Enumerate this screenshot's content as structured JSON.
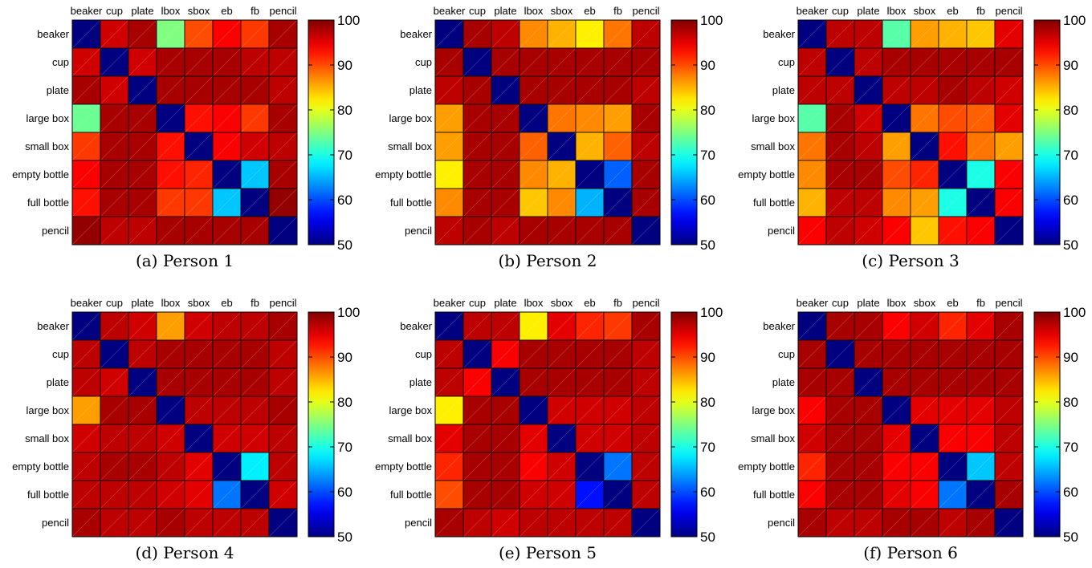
{
  "chart_data": [
    {
      "type": "heatmap",
      "caption": "(a)  Person 1",
      "x_labels": [
        "beaker",
        "cup",
        "plate",
        "lbox",
        "sbox",
        "eb",
        "fb",
        "pencil"
      ],
      "y_labels": [
        "beaker",
        "cup",
        "plate",
        "large box",
        "small box",
        "empty bottle",
        "full bottle",
        "pencil"
      ],
      "values": [
        [
          50,
          96,
          98,
          75,
          90,
          94,
          91,
          98
        ],
        [
          96,
          50,
          96,
          98,
          98,
          98,
          97,
          97
        ],
        [
          98,
          96,
          50,
          98,
          98,
          98,
          98,
          97
        ],
        [
          74,
          98,
          98,
          50,
          93,
          94,
          91,
          98
        ],
        [
          91,
          98,
          98,
          93,
          50,
          94,
          96,
          97
        ],
        [
          94,
          98,
          98,
          93,
          92,
          50,
          66,
          98
        ],
        [
          93,
          98,
          98,
          91,
          91,
          66,
          50,
          99
        ],
        [
          99,
          97,
          97,
          98,
          98,
          98,
          98,
          50
        ]
      ],
      "colorbar": {
        "min": 50,
        "max": 100,
        "ticks": [
          50,
          60,
          70,
          80,
          90,
          100
        ],
        "colormap": "jet"
      }
    },
    {
      "type": "heatmap",
      "caption": "(b)  Person 2",
      "x_labels": [
        "beaker",
        "cup",
        "plate",
        "lbox",
        "sbox",
        "eb",
        "fb",
        "pencil"
      ],
      "y_labels": [
        "beaker",
        "cup",
        "plate",
        "large box",
        "small box",
        "empty bottle",
        "full bottle",
        "pencil"
      ],
      "values": [
        [
          50,
          98,
          97,
          87,
          85,
          82,
          88,
          97
        ],
        [
          98,
          50,
          98,
          98,
          98,
          98,
          98,
          98
        ],
        [
          97,
          98,
          50,
          98,
          98,
          98,
          98,
          97
        ],
        [
          86,
          98,
          98,
          50,
          88,
          87,
          86,
          98
        ],
        [
          86,
          98,
          98,
          89,
          50,
          85,
          89,
          97
        ],
        [
          82,
          98,
          98,
          87,
          85,
          50,
          61,
          98
        ],
        [
          87,
          98,
          98,
          84,
          87,
          65,
          50,
          98
        ],
        [
          97,
          98,
          97,
          98,
          98,
          98,
          98,
          50
        ]
      ],
      "colorbar": {
        "min": 50,
        "max": 100,
        "ticks": [
          50,
          60,
          70,
          80,
          90,
          100
        ],
        "colormap": "jet"
      }
    },
    {
      "type": "heatmap",
      "caption": "(c)  Person 3",
      "x_labels": [
        "beaker",
        "cup",
        "plate",
        "lbox",
        "sbox",
        "eb",
        "fb",
        "pencil"
      ],
      "y_labels": [
        "beaker",
        "cup",
        "plate",
        "large box",
        "small box",
        "empty bottle",
        "full bottle",
        "pencil"
      ],
      "values": [
        [
          50,
          97,
          97,
          73,
          86,
          85,
          84,
          95
        ],
        [
          97,
          50,
          97,
          98,
          98,
          98,
          98,
          98
        ],
        [
          97,
          97,
          50,
          97,
          97,
          98,
          97,
          96
        ],
        [
          73,
          98,
          96,
          50,
          88,
          90,
          89,
          95
        ],
        [
          88,
          98,
          97,
          86,
          50,
          93,
          88,
          86
        ],
        [
          87,
          98,
          98,
          90,
          92,
          50,
          70,
          94
        ],
        [
          85,
          97,
          97,
          87,
          86,
          70,
          50,
          94
        ],
        [
          94,
          97,
          96,
          94,
          84,
          93,
          94,
          50
        ]
      ],
      "colorbar": {
        "min": 50,
        "max": 100,
        "ticks": [
          50,
          60,
          70,
          80,
          90,
          100
        ],
        "colormap": "jet"
      }
    },
    {
      "type": "heatmap",
      "caption": "(d)  Person 4",
      "x_labels": [
        "beaker",
        "cup",
        "plate",
        "lbox",
        "sbox",
        "eb",
        "fb",
        "pencil"
      ],
      "y_labels": [
        "beaker",
        "cup",
        "plate",
        "large box",
        "small box",
        "empty bottle",
        "full bottle",
        "pencil"
      ],
      "values": [
        [
          50,
          97,
          96,
          86,
          96,
          97,
          97,
          98
        ],
        [
          97,
          50,
          97,
          98,
          98,
          98,
          98,
          97
        ],
        [
          97,
          96,
          50,
          98,
          98,
          98,
          98,
          97
        ],
        [
          86,
          98,
          98,
          50,
          97,
          97,
          97,
          98
        ],
        [
          96,
          97,
          97,
          96,
          50,
          96,
          96,
          97
        ],
        [
          97,
          98,
          98,
          97,
          95,
          50,
          68,
          97
        ],
        [
          97,
          97,
          97,
          96,
          95,
          62,
          50,
          96
        ],
        [
          98,
          97,
          97,
          98,
          97,
          97,
          97,
          50
        ]
      ],
      "colorbar": {
        "min": 50,
        "max": 100,
        "ticks": [
          50,
          60,
          70,
          80,
          90,
          100
        ],
        "colormap": "jet"
      }
    },
    {
      "type": "heatmap",
      "caption": "(e)  Person 5",
      "x_labels": [
        "beaker",
        "cup",
        "plate",
        "lbox",
        "sbox",
        "eb",
        "fb",
        "pencil"
      ],
      "y_labels": [
        "beaker",
        "cup",
        "plate",
        "large box",
        "small box",
        "empty bottle",
        "full bottle",
        "pencil"
      ],
      "values": [
        [
          50,
          97,
          97,
          82,
          95,
          92,
          91,
          98
        ],
        [
          97,
          50,
          94,
          98,
          98,
          98,
          98,
          97
        ],
        [
          97,
          94,
          50,
          98,
          98,
          98,
          98,
          97
        ],
        [
          82,
          98,
          98,
          50,
          96,
          96,
          96,
          97
        ],
        [
          95,
          98,
          98,
          95,
          50,
          96,
          96,
          97
        ],
        [
          92,
          98,
          98,
          94,
          96,
          50,
          62,
          97
        ],
        [
          90,
          98,
          98,
          96,
          96,
          57,
          50,
          97
        ],
        [
          98,
          97,
          96,
          97,
          97,
          97,
          97,
          50
        ]
      ],
      "colorbar": {
        "min": 50,
        "max": 100,
        "ticks": [
          50,
          60,
          70,
          80,
          90,
          100
        ],
        "colormap": "jet"
      }
    },
    {
      "type": "heatmap",
      "caption": "(f)  Person 6",
      "x_labels": [
        "beaker",
        "cup",
        "plate",
        "lbox",
        "sbox",
        "eb",
        "fb",
        "pencil"
      ],
      "y_labels": [
        "beaker",
        "cup",
        "plate",
        "large box",
        "small box",
        "empty bottle",
        "full bottle",
        "pencil"
      ],
      "values": [
        [
          50,
          98,
          98,
          94,
          96,
          92,
          95,
          98
        ],
        [
          98,
          50,
          98,
          98,
          98,
          98,
          98,
          98
        ],
        [
          98,
          98,
          50,
          98,
          98,
          98,
          98,
          98
        ],
        [
          94,
          98,
          98,
          50,
          95,
          95,
          95,
          97
        ],
        [
          96,
          98,
          98,
          95,
          50,
          94,
          94,
          97
        ],
        [
          92,
          98,
          98,
          94,
          94,
          50,
          66,
          97
        ],
        [
          94,
          98,
          98,
          95,
          94,
          62,
          50,
          98
        ],
        [
          98,
          97,
          97,
          98,
          98,
          97,
          98,
          50
        ]
      ],
      "colorbar": {
        "min": 50,
        "max": 100,
        "ticks": [
          50,
          60,
          70,
          80,
          90,
          100
        ],
        "colormap": "jet"
      }
    }
  ]
}
